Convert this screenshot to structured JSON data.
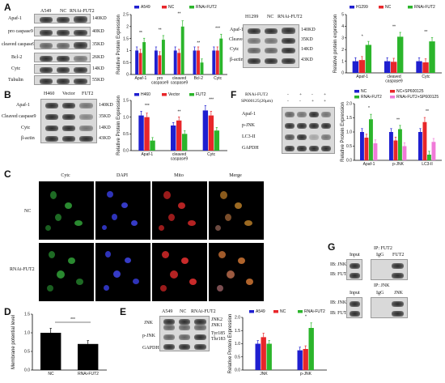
{
  "panel_labels": {
    "a": "A",
    "b": "B",
    "c": "C",
    "d": "D",
    "e": "E",
    "f": "F",
    "g": "G"
  },
  "panelA": {
    "lanes": [
      "A549",
      "NC",
      "RNAi-FUT2"
    ],
    "rows": [
      "Apaf-1",
      "pro caspase9",
      "cleaved caspase9",
      "Bcl-2",
      "Cytc",
      "Tubulin"
    ],
    "mw": [
      "140KD",
      "40KD",
      "35KD",
      "26KD",
      "14KD",
      "55KD"
    ],
    "legend": [
      "A549",
      "NC",
      "RNAi-FUT2"
    ],
    "ylabel": "Relative Protein Expression",
    "sig": [
      "**",
      "**",
      "**",
      "**",
      "***"
    ]
  },
  "panelA2": {
    "lanes": [
      "H1299",
      "NC",
      "RNAi-FUT2"
    ],
    "rows": [
      "Apaf-1",
      "Cleaved caspase9",
      "Cytc",
      "β-actin"
    ],
    "mw": [
      "140KD",
      "35KD",
      "14KD",
      "43KD"
    ],
    "legend": [
      "H1299",
      "NC",
      "RNAi-FUT2"
    ],
    "ylabel": "Relative protein expression",
    "sig": [
      "*",
      "**",
      "**"
    ]
  },
  "panelB": {
    "lanes": [
      "H460",
      "Vector",
      "FUT2"
    ],
    "rows": [
      "Apaf-1",
      "Cleaved caspase9",
      "Cytc",
      "β-actin"
    ],
    "mw": [
      "140KD",
      "35KD",
      "14KD",
      "43KD"
    ],
    "legend": [
      "H460",
      "Vector",
      "FUT2"
    ],
    "ylabel": "Relative Protein Expression",
    "sig": [
      "***",
      "**",
      "***"
    ]
  },
  "panelF": {
    "treat_labels": [
      "RNAi-FUT2",
      "SP600125(20μm)"
    ],
    "treat_signs": [
      [
        "-",
        "+",
        "-",
        "+"
      ],
      [
        "-",
        "-",
        "+",
        "+"
      ]
    ],
    "rows": [
      "Apaf-1",
      "p-JNK",
      "LC3-II",
      "GAPDH"
    ],
    "legend": [
      "NC",
      "NC+SP600125",
      "RNAi-FUT2",
      "RNAi-FUT2+SP600125"
    ],
    "ylabel": "Relative Protein Expression",
    "sig": [
      "*",
      "*",
      "**",
      "*",
      "**",
      "*",
      "**"
    ]
  },
  "panelC": {
    "cols": [
      "Cytc",
      "DAPI",
      "Mito",
      "Merge"
    ],
    "rows": [
      "NC",
      "RNAi-FUT2"
    ]
  },
  "panelD": {
    "ylabel": "Membrane potential level",
    "sig": "***"
  },
  "panelE": {
    "lanes": [
      "A549",
      "NC",
      "RNAi-FUT2"
    ],
    "rows": [
      "JNK",
      "p-JNK",
      "GAPDH"
    ],
    "mw": [
      "JNK2",
      "JNK1",
      "Tyr185",
      "Thr183"
    ],
    "legend": [
      "A549",
      "NC",
      "RNAi-FUT2"
    ],
    "ylabel": "Relative Protein Expression",
    "sig": "*"
  },
  "panelG": {
    "ip1": "IP: FUT2",
    "ip2": "IP: JNK",
    "lanes1": [
      "Input",
      "IgG",
      "FUT2"
    ],
    "lanes2": [
      "Input",
      "IgG",
      "JNK"
    ],
    "rows1": [
      "IB: JNK",
      "IB: FUT2"
    ],
    "rows2": [
      "IB: JNK",
      "IB: FUT2"
    ]
  },
  "colors": {
    "black": "#000000",
    "blue": "#1f1fd0",
    "red": "#e8262a",
    "green": "#2bb52b",
    "pink": "#f07ad8"
  },
  "chart_data": [
    {
      "type": "bar",
      "id": "A-left",
      "categories": [
        "Apaf-1",
        "pro caspase9",
        "cleaved caspase9",
        "Bcl-2",
        "Cytc"
      ],
      "series": [
        {
          "name": "A549",
          "values": [
            1.0,
            1.0,
            1.0,
            1.0,
            1.0
          ]
        },
        {
          "name": "NC",
          "values": [
            0.9,
            0.8,
            0.9,
            1.0,
            1.0
          ]
        },
        {
          "name": "RNAi-FUT2",
          "values": [
            1.35,
            1.45,
            2.0,
            0.5,
            1.5
          ]
        }
      ],
      "ylim": [
        0,
        2.5
      ],
      "yticks": [
        0,
        0.5,
        1.0,
        1.5,
        2.0,
        2.5
      ]
    },
    {
      "type": "bar",
      "id": "A-right",
      "categories": [
        "Apaf-1",
        "cleaved caspase9",
        "Cytc"
      ],
      "series": [
        {
          "name": "H1299",
          "values": [
            1.0,
            1.0,
            1.0
          ]
        },
        {
          "name": "NC",
          "values": [
            1.1,
            0.95,
            0.9
          ]
        },
        {
          "name": "RNAi-FUT2",
          "values": [
            2.4,
            3.1,
            2.7
          ]
        }
      ],
      "ylim": [
        0,
        5
      ],
      "yticks": [
        0,
        1,
        2,
        3,
        4,
        5
      ]
    },
    {
      "type": "bar",
      "id": "B",
      "categories": [
        "Apaf-1",
        "cleaved caspase9",
        "Cytc"
      ],
      "series": [
        {
          "name": "H460",
          "values": [
            1.05,
            0.75,
            1.2
          ]
        },
        {
          "name": "Vector",
          "values": [
            1.0,
            0.9,
            1.05
          ]
        },
        {
          "name": "FUT2",
          "values": [
            0.3,
            0.5,
            0.6
          ]
        }
      ],
      "ylim": [
        0,
        1.5
      ],
      "yticks": [
        0,
        0.5,
        1.0,
        1.5
      ]
    },
    {
      "type": "bar",
      "id": "F",
      "categories": [
        "Apaf-1",
        "p-JNK",
        "LC3-II"
      ],
      "series": [
        {
          "name": "NC",
          "values": [
            1.0,
            1.0,
            1.0
          ]
        },
        {
          "name": "NC+SP600125",
          "values": [
            0.8,
            0.7,
            1.35
          ]
        },
        {
          "name": "RNAi-FUT2",
          "values": [
            1.45,
            1.1,
            0.2
          ]
        },
        {
          "name": "RNAi-FUT2+SP600125",
          "values": [
            0.6,
            0.5,
            0.65
          ]
        }
      ],
      "ylim": [
        0,
        2.0
      ],
      "yticks": [
        0,
        0.5,
        1.0,
        1.5,
        2.0
      ]
    },
    {
      "type": "bar",
      "id": "D",
      "categories": [
        "NC",
        "RNAi-FUT2"
      ],
      "series": [
        {
          "values": [
            1.0,
            0.7
          ]
        }
      ],
      "ylim": [
        0,
        1.5
      ],
      "yticks": [
        0,
        0.5,
        1.0,
        1.5
      ]
    },
    {
      "type": "bar",
      "id": "E",
      "categories": [
        "JNK",
        "p-JNK"
      ],
      "series": [
        {
          "name": "A549",
          "values": [
            1.0,
            0.75
          ]
        },
        {
          "name": "NC",
          "values": [
            1.25,
            0.8
          ]
        },
        {
          "name": "RNAi-FUT2",
          "values": [
            1.0,
            1.6
          ]
        }
      ],
      "ylim": [
        0,
        2.0
      ],
      "yticks": [
        0,
        0.5,
        1.0,
        1.5,
        2.0
      ]
    }
  ]
}
